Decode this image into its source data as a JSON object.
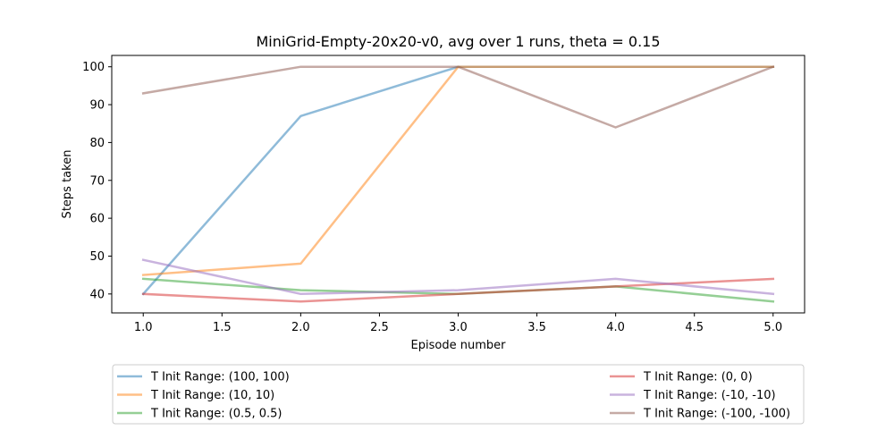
{
  "chart_data": {
    "type": "line",
    "title": "MiniGrid-Empty-20x20-v0, avg over 1 runs, theta = 0.15",
    "xlabel": "Episode number",
    "ylabel": "Steps taken",
    "x": [
      1,
      2,
      3,
      4,
      5
    ],
    "xlim": [
      0.8,
      5.2
    ],
    "ylim": [
      35,
      103
    ],
    "xticks": [
      1.0,
      1.5,
      2.0,
      2.5,
      3.0,
      3.5,
      4.0,
      4.5,
      5.0
    ],
    "xtick_labels": [
      "1.0",
      "1.5",
      "2.0",
      "2.5",
      "3.0",
      "3.5",
      "4.0",
      "4.5",
      "5.0"
    ],
    "yticks": [
      40,
      50,
      60,
      70,
      80,
      90,
      100
    ],
    "ytick_labels": [
      "40",
      "50",
      "60",
      "70",
      "80",
      "90",
      "100"
    ],
    "grid": false,
    "legend_placement": "below",
    "series": [
      {
        "name": "T Init Range: (100, 100)",
        "color": "#1f77b4",
        "values": [
          40,
          87,
          100,
          100,
          100
        ]
      },
      {
        "name": "T Init Range: (10, 10)",
        "color": "#ff7f0e",
        "values": [
          45,
          48,
          100,
          100,
          100
        ]
      },
      {
        "name": "T Init Range: (0.5, 0.5)",
        "color": "#2ca02c",
        "values": [
          44,
          41,
          40,
          42,
          38
        ]
      },
      {
        "name": "T Init Range: (0, 0)",
        "color": "#d62728",
        "values": [
          40,
          38,
          40,
          42,
          44
        ]
      },
      {
        "name": "T Init Range: (-10, -10)",
        "color": "#9467bd",
        "values": [
          49,
          40,
          41,
          44,
          40
        ]
      },
      {
        "name": "T Init Range: (-100, -100)",
        "color": "#8c564b",
        "values": [
          93,
          100,
          100,
          84,
          100
        ]
      }
    ]
  }
}
